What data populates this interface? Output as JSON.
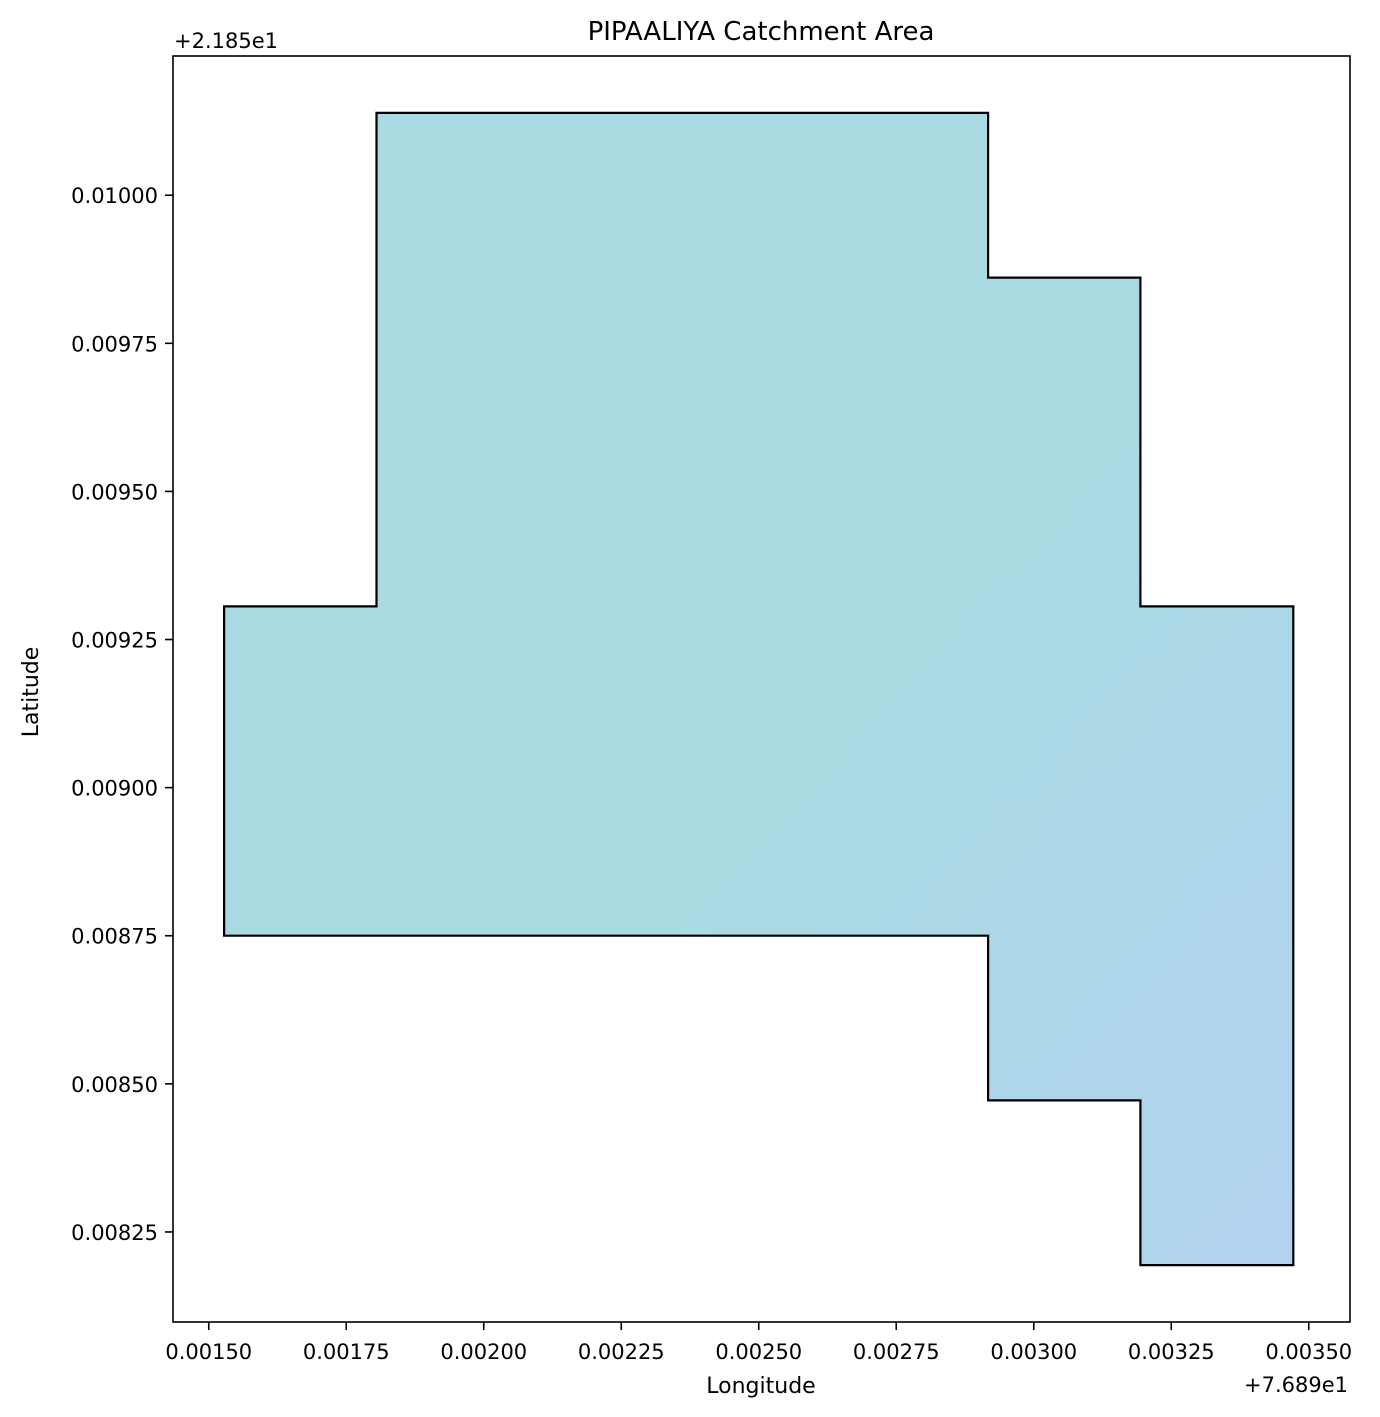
{
  "chart_data": {
    "type": "area",
    "title": "PIPAALIYA Catchment Area",
    "xlabel": "Longitude",
    "ylabel": "Latitude",
    "x_offset_label": "+7.689e1",
    "y_offset_label": "+2.185e1",
    "xlim": [
      0.001435,
      0.003575
    ],
    "ylim": [
      0.008098,
      0.010235
    ],
    "x_ticks": [
      0.0015,
      0.00175,
      0.002,
      0.00225,
      0.0025,
      0.00275,
      0.003,
      0.00325,
      0.0035
    ],
    "x_tick_labels": [
      "0.00150",
      "0.00175",
      "0.00200",
      "0.00225",
      "0.00250",
      "0.00275",
      "0.00300",
      "0.00325",
      "0.00350"
    ],
    "y_ticks": [
      0.00825,
      0.0085,
      0.00875,
      0.009,
      0.00925,
      0.0095,
      0.00975,
      0.01
    ],
    "y_tick_labels": [
      "0.00825",
      "0.00850",
      "0.00875",
      "0.00900",
      "0.00925",
      "0.00950",
      "0.00975",
      "0.01000"
    ],
    "grid": false,
    "fill_color_start": "#a9dae2",
    "fill_color_end": "#b2d2f0",
    "edge_color": "#000000",
    "polygon": [
      [
        0.001805,
        0.010139
      ],
      [
        0.002917,
        0.010139
      ],
      [
        0.002917,
        0.009861
      ],
      [
        0.003194,
        0.009861
      ],
      [
        0.003194,
        0.009306
      ],
      [
        0.003472,
        0.009306
      ],
      [
        0.003472,
        0.008194
      ],
      [
        0.003194,
        0.008194
      ],
      [
        0.003194,
        0.008472
      ],
      [
        0.002917,
        0.008472
      ],
      [
        0.002917,
        0.00875
      ],
      [
        0.001528,
        0.00875
      ],
      [
        0.001528,
        0.009306
      ],
      [
        0.001805,
        0.009306
      ]
    ]
  }
}
